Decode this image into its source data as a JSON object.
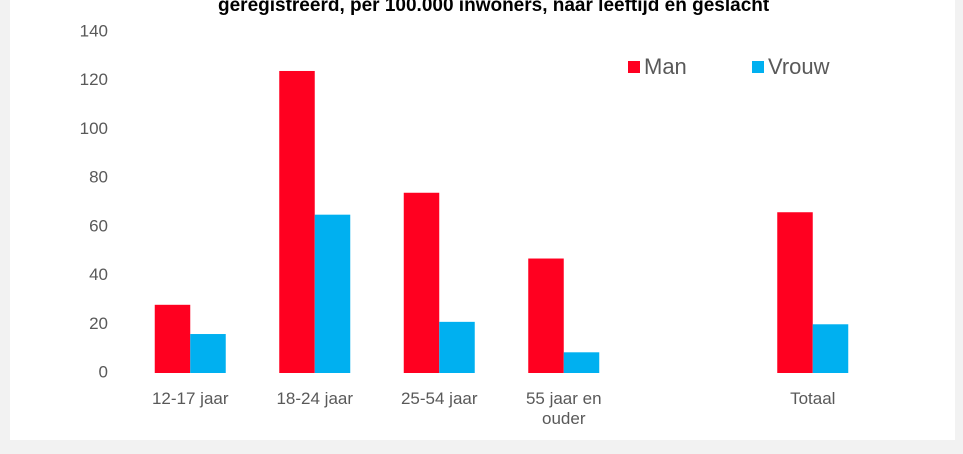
{
  "chart_data": {
    "type": "bar",
    "title": "geregistreerd, per 100.000 inwoners, naar leeftijd en geslacht",
    "categories": [
      "12-17 jaar",
      "18-24 jaar",
      "25-54 jaar",
      "55 jaar en ouder",
      null,
      "Totaal"
    ],
    "series": [
      {
        "name": "Man",
        "color": "#ff0020",
        "values": [
          28,
          124,
          74,
          47,
          null,
          66
        ]
      },
      {
        "name": "Vrouw",
        "color": "#00b0f0",
        "values": [
          16,
          65,
          21,
          8.5,
          null,
          20
        ]
      }
    ],
    "ylim": [
      0,
      140
    ],
    "yticks": [
      0,
      20,
      40,
      60,
      80,
      100,
      120,
      140
    ],
    "grid": false,
    "legend": "top-right"
  }
}
